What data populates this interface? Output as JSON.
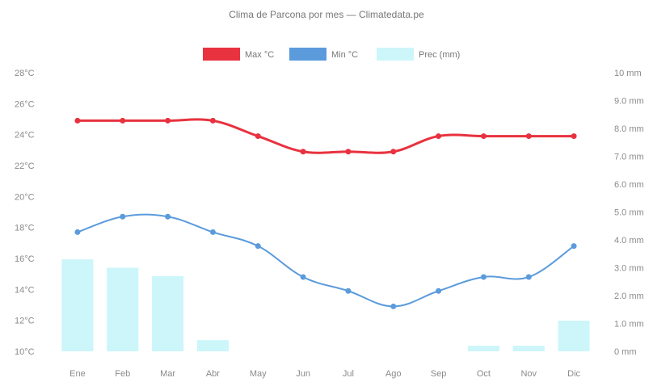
{
  "chart_data": {
    "type": "line",
    "title": "Clima de Parcona por mes — Climatedata.pe",
    "categories": [
      "Ene",
      "Feb",
      "Mar",
      "Abr",
      "May",
      "Jun",
      "Jul",
      "Ago",
      "Sep",
      "Oct",
      "Nov",
      "Dic"
    ],
    "y_left": {
      "ticks": [
        "10°C",
        "12°C",
        "14°C",
        "16°C",
        "18°C",
        "20°C",
        "22°C",
        "24°C",
        "26°C",
        "28°C"
      ],
      "ylim": [
        10,
        28
      ]
    },
    "y_right": {
      "ticks": [
        "0 mm",
        "1.0 mm",
        "2.0 mm",
        "3.0 mm",
        "4.0 mm",
        "5.0 mm",
        "6.0 mm",
        "7.0 mm",
        "8.0 mm",
        "9.0 mm",
        "10 mm"
      ],
      "ylim": [
        0,
        10
      ]
    },
    "series": [
      {
        "name": "Max °C",
        "kind": "line",
        "axis": "left",
        "color": "#e8323f",
        "values": [
          24.9,
          24.9,
          24.9,
          24.9,
          23.9,
          22.9,
          22.9,
          22.9,
          23.9,
          23.9,
          23.9,
          23.9
        ]
      },
      {
        "name": "Min °C",
        "kind": "line",
        "axis": "left",
        "color": "#5b9bdc",
        "values": [
          17.7,
          18.7,
          18.7,
          17.7,
          16.8,
          14.8,
          13.9,
          12.9,
          13.9,
          14.8,
          14.8,
          16.8
        ]
      },
      {
        "name": "Prec (mm)",
        "kind": "bar",
        "axis": "right",
        "color": "#ccf6fa",
        "values": [
          3.3,
          3.0,
          2.7,
          0.4,
          0.0,
          0.0,
          0.0,
          0.0,
          0.0,
          0.2,
          0.2,
          1.1
        ]
      }
    ],
    "grid": false,
    "legend": "top-center"
  }
}
